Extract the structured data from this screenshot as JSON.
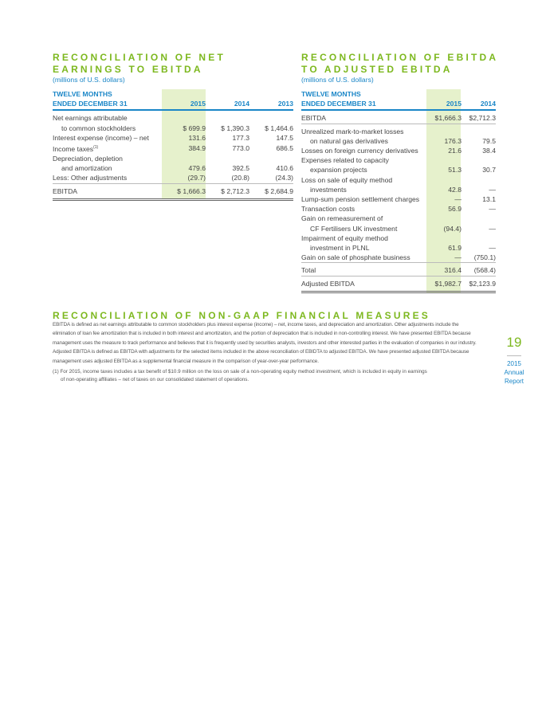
{
  "left": {
    "title": [
      "RECONCILIATION OF NET",
      "EARNINGS TO EBITDA"
    ],
    "subtitle": "(millions of U.S. dollars)",
    "header": [
      "TWELVE MONTHS",
      "ENDED DECEMBER 31"
    ],
    "columns": [
      "2015",
      "2014",
      "2013"
    ],
    "rows": [
      {
        "label": "Net earnings attributable",
        "cells": [
          "",
          "",
          ""
        ]
      },
      {
        "label": "to common stockholders",
        "cells": [
          "$ 699.9",
          "$ 1,390.3",
          "$ 1,464.6"
        ]
      },
      {
        "label": "Interest expense (income) – net",
        "cells": [
          "131.6",
          "177.3",
          "147.5"
        ]
      },
      {
        "label": "Income taxes",
        "sup": "(1)",
        "cells": [
          "384.9",
          "773.0",
          "686.5"
        ]
      },
      {
        "label": "Depreciation, depletion",
        "cells": [
          "",
          "",
          ""
        ]
      },
      {
        "label": "and amortization",
        "cells": [
          "479.6",
          "392.5",
          "410.6"
        ]
      },
      {
        "label": "Less: Other adjustments",
        "cells": [
          "(29.7)",
          "(20.8)",
          "(24.3)"
        ]
      },
      {
        "label": "EBITDA",
        "cells": [
          "$ 1,666.3",
          "$ 2,712.3",
          "$ 2,684.9"
        ]
      }
    ]
  },
  "right": {
    "title": [
      "RECONCILIATION OF EBITDA",
      "TO ADJUSTED EBITDA"
    ],
    "subtitle": "(millions of U.S. dollars)",
    "header": [
      "TWELVE MONTHS",
      "ENDED DECEMBER 31"
    ],
    "columns": [
      "2015",
      "2014"
    ],
    "rows": [
      {
        "label": "EBITDA",
        "cells": [
          "$1,666.3",
          "$2,712.3"
        ]
      },
      {
        "label": "Unrealized mark-to-market losses",
        "cells": [
          "",
          ""
        ]
      },
      {
        "label": "on natural gas derivatives",
        "cells": [
          "176.3",
          "79.5"
        ]
      },
      {
        "label": "Losses on foreign currency derivatives",
        "cells": [
          "21.6",
          "38.4"
        ]
      },
      {
        "label": "Expenses related to capacity",
        "cells": [
          "",
          ""
        ]
      },
      {
        "label": "expansion projects",
        "cells": [
          "51.3",
          "30.7"
        ]
      },
      {
        "label": "Loss on sale of equity method",
        "cells": [
          "",
          ""
        ]
      },
      {
        "label": "investments",
        "cells": [
          "42.8",
          "—"
        ]
      },
      {
        "label": "Lump-sum pension settlement charges",
        "cells": [
          "—",
          "13.1"
        ]
      },
      {
        "label": "Transaction costs",
        "cells": [
          "56.9",
          "—"
        ]
      },
      {
        "label": "Gain on remeasurement of",
        "cells": [
          "",
          ""
        ]
      },
      {
        "label": "CF Fertilisers UK investment",
        "cells": [
          "(94.4)",
          "—"
        ]
      },
      {
        "label": "Impairment of equity method",
        "cells": [
          "",
          ""
        ]
      },
      {
        "label": "investment in PLNL",
        "cells": [
          "61.9",
          "—"
        ]
      },
      {
        "label": "Gain on sale of phosphate business",
        "cells": [
          "—",
          "(750.1)"
        ]
      },
      {
        "label": "Total",
        "cells": [
          "316.4",
          "(568.4)"
        ]
      },
      {
        "label": "Adjusted EBITDA",
        "cells": [
          "$1,982.7",
          "$2,123.9"
        ]
      }
    ]
  },
  "nongaap": {
    "title": "RECONCILIATION OF NON-GAAP FINANCIAL MEASURES",
    "body": "EBITDA is defined as net earnings attributable to common stockholders plus interest expense (income) – net, income taxes, and depreciation and amortization. Other adjustments include the elimination of loan fee amortization that is included in both interest and amortization, and the portion of depreciation that is included in non-controlling interest. We have presented EBITDA because management uses the measure to track performance and believes that it is frequently used by securities analysts, investors and other interested parties in the evaluation of companies in our industry. Adjusted EBITDA is defined as EBITDA with adjustments for the selected items included in the above reconciliation of EBIDTA to adjusted EBITDA. We have presented adjusted EBITDA because management uses adjusted EBITDA as a supplemental financial measure in the comparison of year-over-year performance.",
    "footnote": [
      "(1) For 2015, income taxes includes a tax benefit of $10.9 million on the loss on sale of a non-operating equity method investment, which is included in equity in earnings",
      "of non-operating affiliates – net of taxes on our consolidated statement of operations."
    ]
  },
  "page": {
    "number": "19",
    "year": "2015",
    "label": "Annual Report"
  },
  "colors": {
    "green": "#7db81f",
    "blue": "#1a86c7",
    "highlight": "#e6f1cc"
  }
}
